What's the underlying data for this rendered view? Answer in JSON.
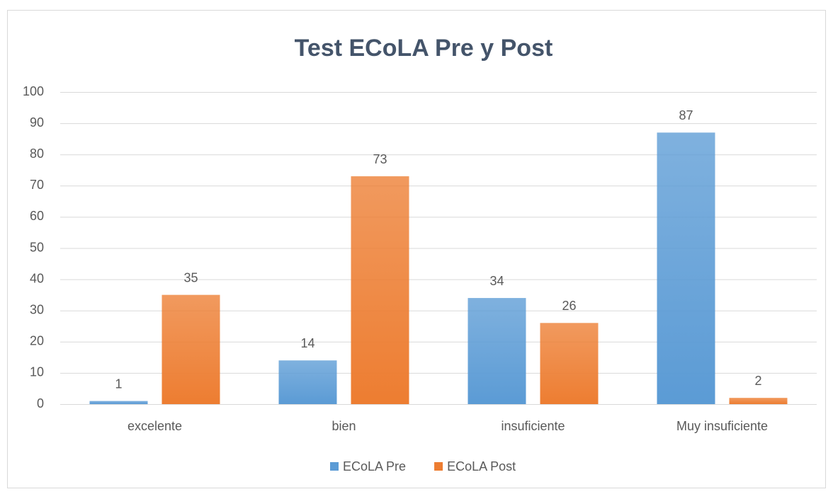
{
  "chart_data": {
    "type": "bar",
    "title": "Test ECoLA Pre y Post",
    "categories": [
      "excelente",
      "bien",
      "insuficiente",
      "Muy insuficiente"
    ],
    "series": [
      {
        "name": "ECoLA Pre",
        "color": "#5b9bd5",
        "values": [
          1,
          14,
          34,
          87
        ]
      },
      {
        "name": "ECoLA Post",
        "color": "#ed7d31",
        "values": [
          35,
          73,
          26,
          2
        ]
      }
    ],
    "ylim": [
      0,
      100
    ],
    "yticks": [
      0,
      10,
      20,
      30,
      40,
      50,
      60,
      70,
      80,
      90,
      100
    ],
    "grid": true,
    "legend": "bottom"
  }
}
